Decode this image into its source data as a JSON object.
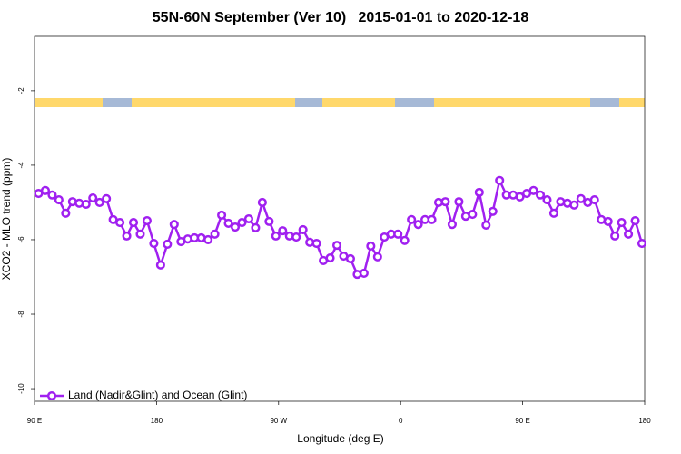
{
  "chart_data": {
    "type": "line",
    "title": "55N-60N September (Ver 10)   2015-01-01 to 2020-12-18",
    "xlabel": "Longitude (deg E)",
    "ylabel": "XCO2 - MLO trend (ppm)",
    "x": [
      93,
      98,
      103,
      108,
      113,
      118,
      123,
      128,
      133,
      138,
      143,
      148,
      153,
      158,
      163,
      168,
      173,
      178,
      183,
      188,
      193,
      198,
      203,
      208,
      213,
      218,
      223,
      228,
      233,
      238,
      243,
      248,
      253,
      258,
      263,
      268,
      273,
      278,
      283,
      288,
      293,
      298,
      303,
      308,
      313,
      318,
      323,
      328,
      333,
      338,
      343,
      348,
      353,
      358,
      363,
      368,
      373,
      378,
      383,
      388,
      393,
      398,
      403,
      408,
      413,
      418,
      423,
      428,
      433,
      438,
      443,
      448,
      453,
      458,
      463,
      468,
      473,
      478,
      483,
      488,
      493,
      498,
      503,
      508,
      513,
      518,
      523,
      528,
      533,
      538
    ],
    "series": [
      {
        "name": "Land (Nadir&Glint) and Ocean (Glint)",
        "color": "#a020f0",
        "values": [
          -4.76,
          -4.68,
          -4.8,
          -4.93,
          -5.29,
          -4.98,
          -5.02,
          -5.05,
          -4.88,
          -5.0,
          -4.9,
          -5.46,
          -5.54,
          -5.9,
          -5.54,
          -5.85,
          -5.49,
          -6.1,
          -6.68,
          -6.12,
          -5.59,
          -6.05,
          -5.98,
          -5.95,
          -5.95,
          -6.0,
          -5.85,
          -5.34,
          -5.56,
          -5.66,
          -5.54,
          -5.44,
          -5.68,
          -5.0,
          -5.51,
          -5.9,
          -5.76,
          -5.9,
          -5.93,
          -5.73,
          -6.07,
          -6.1,
          -6.56,
          -6.49,
          -6.15,
          -6.44,
          -6.51,
          -6.93,
          -6.9,
          -6.17,
          -6.46,
          -5.93,
          -5.85,
          -5.85,
          -6.02,
          -5.46,
          -5.59,
          -5.46,
          -5.46,
          -5.0,
          -4.98,
          -5.59,
          -4.98,
          -5.37,
          -5.32,
          -4.73,
          -5.61,
          -5.24,
          -4.41,
          -4.8,
          -4.8,
          -4.85,
          -4.76,
          -4.68,
          -4.8,
          -4.93,
          -5.29,
          -4.98,
          -5.02,
          -5.07,
          -4.9,
          -5.0,
          -4.93,
          -5.46,
          -5.51,
          -5.9,
          -5.54,
          -5.85,
          -5.49,
          -6.1
        ]
      }
    ],
    "xlim": [
      90,
      540
    ],
    "xticks": [
      {
        "value": 90,
        "label": "90 E"
      },
      {
        "value": 180,
        "label": "180"
      },
      {
        "value": 270,
        "label": "90 W"
      },
      {
        "value": 360,
        "label": "0"
      },
      {
        "value": 450,
        "label": "90 E"
      },
      {
        "value": 540,
        "label": "180"
      }
    ],
    "ylim": [
      -10.34,
      -0.54
    ],
    "yticks": [
      -2,
      -4,
      -6,
      -8,
      -10
    ],
    "legend": "bottom-left"
  }
}
